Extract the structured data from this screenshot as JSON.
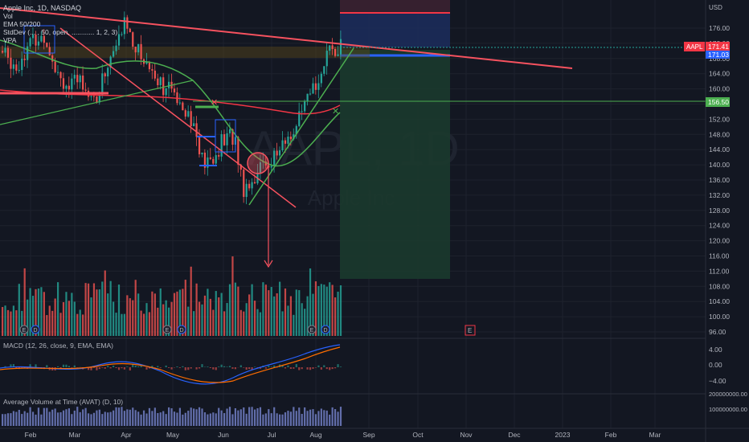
{
  "header": {
    "title": "Apple Inc, 1D, NASDAQ",
    "indicators": [
      "Vol",
      "EMA 50/200",
      "StdDev (... , 50, open, ............ 1, 2, 3)",
      "VPA"
    ]
  },
  "watermark": {
    "symbol": "AAPL, 1D",
    "name": "Apple Inc"
  },
  "price_axis": {
    "currency": "USD",
    "ticks": [
      "176.00",
      "172.00",
      "168.00",
      "164.00",
      "160.00",
      "156.00",
      "152.00",
      "148.00",
      "144.00",
      "140.00",
      "136.00",
      "132.00",
      "128.00",
      "124.00",
      "120.00",
      "116.00",
      "112.00",
      "108.00",
      "104.00",
      "100.00",
      "96.00"
    ],
    "symbol_label": "AAPL",
    "last_price": "171.41",
    "entry_price": "171.03",
    "level_price": "156.50"
  },
  "time_axis": {
    "labels": [
      "Feb",
      "Mar",
      "Apr",
      "May",
      "Jun",
      "Jul",
      "Aug",
      "Sep",
      "Oct",
      "Nov",
      "Dec",
      "2023",
      "Feb",
      "Mar"
    ]
  },
  "macd": {
    "title": "MACD (12, 26, close, 9, EMA, EMA)",
    "ticks": [
      "4.00",
      "0.00",
      "−4.00"
    ]
  },
  "avat": {
    "title": "Average Volume at Time (AVAT) (D, 10)",
    "ticks": [
      "200000000.00",
      "100000000.00"
    ]
  },
  "markers": {
    "earnings": "E",
    "dividend": "D"
  },
  "colors": {
    "background": "#131722",
    "up": "#26a69a",
    "down": "#ef5350",
    "ema50": "#4caf50",
    "ema200": "#f23645",
    "trend": "#f7525f",
    "target_zone": "#1b3a2d",
    "stop_zone": "#1c2b5a",
    "avat": "#7e8cd9"
  },
  "chart_data": {
    "type": "candlestick",
    "symbol": "AAPL",
    "x": [
      "Feb",
      "Mar",
      "Apr",
      "May",
      "Jun",
      "Jul",
      "Aug",
      "Sep"
    ],
    "close": [
      172,
      163,
      175,
      157,
      141,
      137,
      160,
      171.4
    ],
    "ema50_approx": [
      170,
      168,
      166,
      162,
      152,
      146,
      148,
      154
    ],
    "ema200_approx": [
      160,
      161,
      162,
      161,
      158,
      156,
      155,
      156
    ],
    "last_price": 171.41,
    "position": {
      "entry": 171.03,
      "stop": 180,
      "target": 110
    },
    "horizontal_level": 156.5,
    "ylim": [
      96,
      180
    ]
  }
}
